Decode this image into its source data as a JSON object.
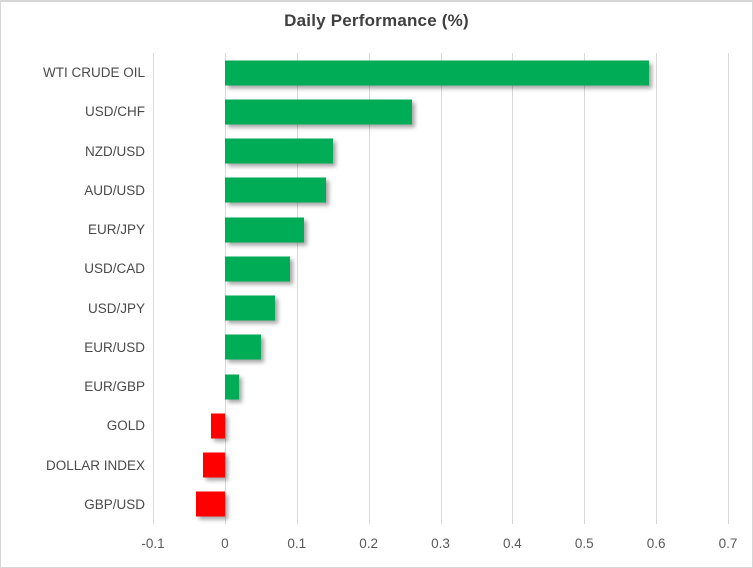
{
  "chart": {
    "title": "Daily Performance (%)"
  },
  "chart_data": {
    "type": "bar",
    "orientation": "horizontal",
    "title": "Daily Performance (%)",
    "categories": [
      "WTI CRUDE OIL",
      "USD/CHF",
      "NZD/USD",
      "AUD/USD",
      "EUR/JPY",
      "USD/CAD",
      "USD/JPY",
      "EUR/USD",
      "EUR/GBP",
      "GOLD",
      "DOLLAR INDEX",
      "GBP/USD"
    ],
    "values": [
      0.59,
      0.26,
      0.15,
      0.14,
      0.11,
      0.09,
      0.07,
      0.05,
      0.02,
      -0.02,
      -0.03,
      -0.04
    ],
    "xlabel": "",
    "ylabel": "",
    "xlim": [
      -0.1,
      0.7
    ],
    "ticks": [
      -0.1,
      0,
      0.1,
      0.2,
      0.3,
      0.4,
      0.5,
      0.6,
      0.7
    ],
    "tick_labels": [
      "-0.1",
      "0",
      "0.1",
      "0.2",
      "0.3",
      "0.4",
      "0.5",
      "0.6",
      "0.7"
    ],
    "grid": "vertical-on",
    "legend": "none",
    "colors": {
      "positive_bar": "#00ac55",
      "negative_bar": "#ff0000",
      "gridline": "#d9d9d9",
      "title_text": "#3f3f3f",
      "category_text": "#4a4a4a",
      "tick_text": "#595959",
      "chart_border": "#d6d6d6"
    }
  }
}
